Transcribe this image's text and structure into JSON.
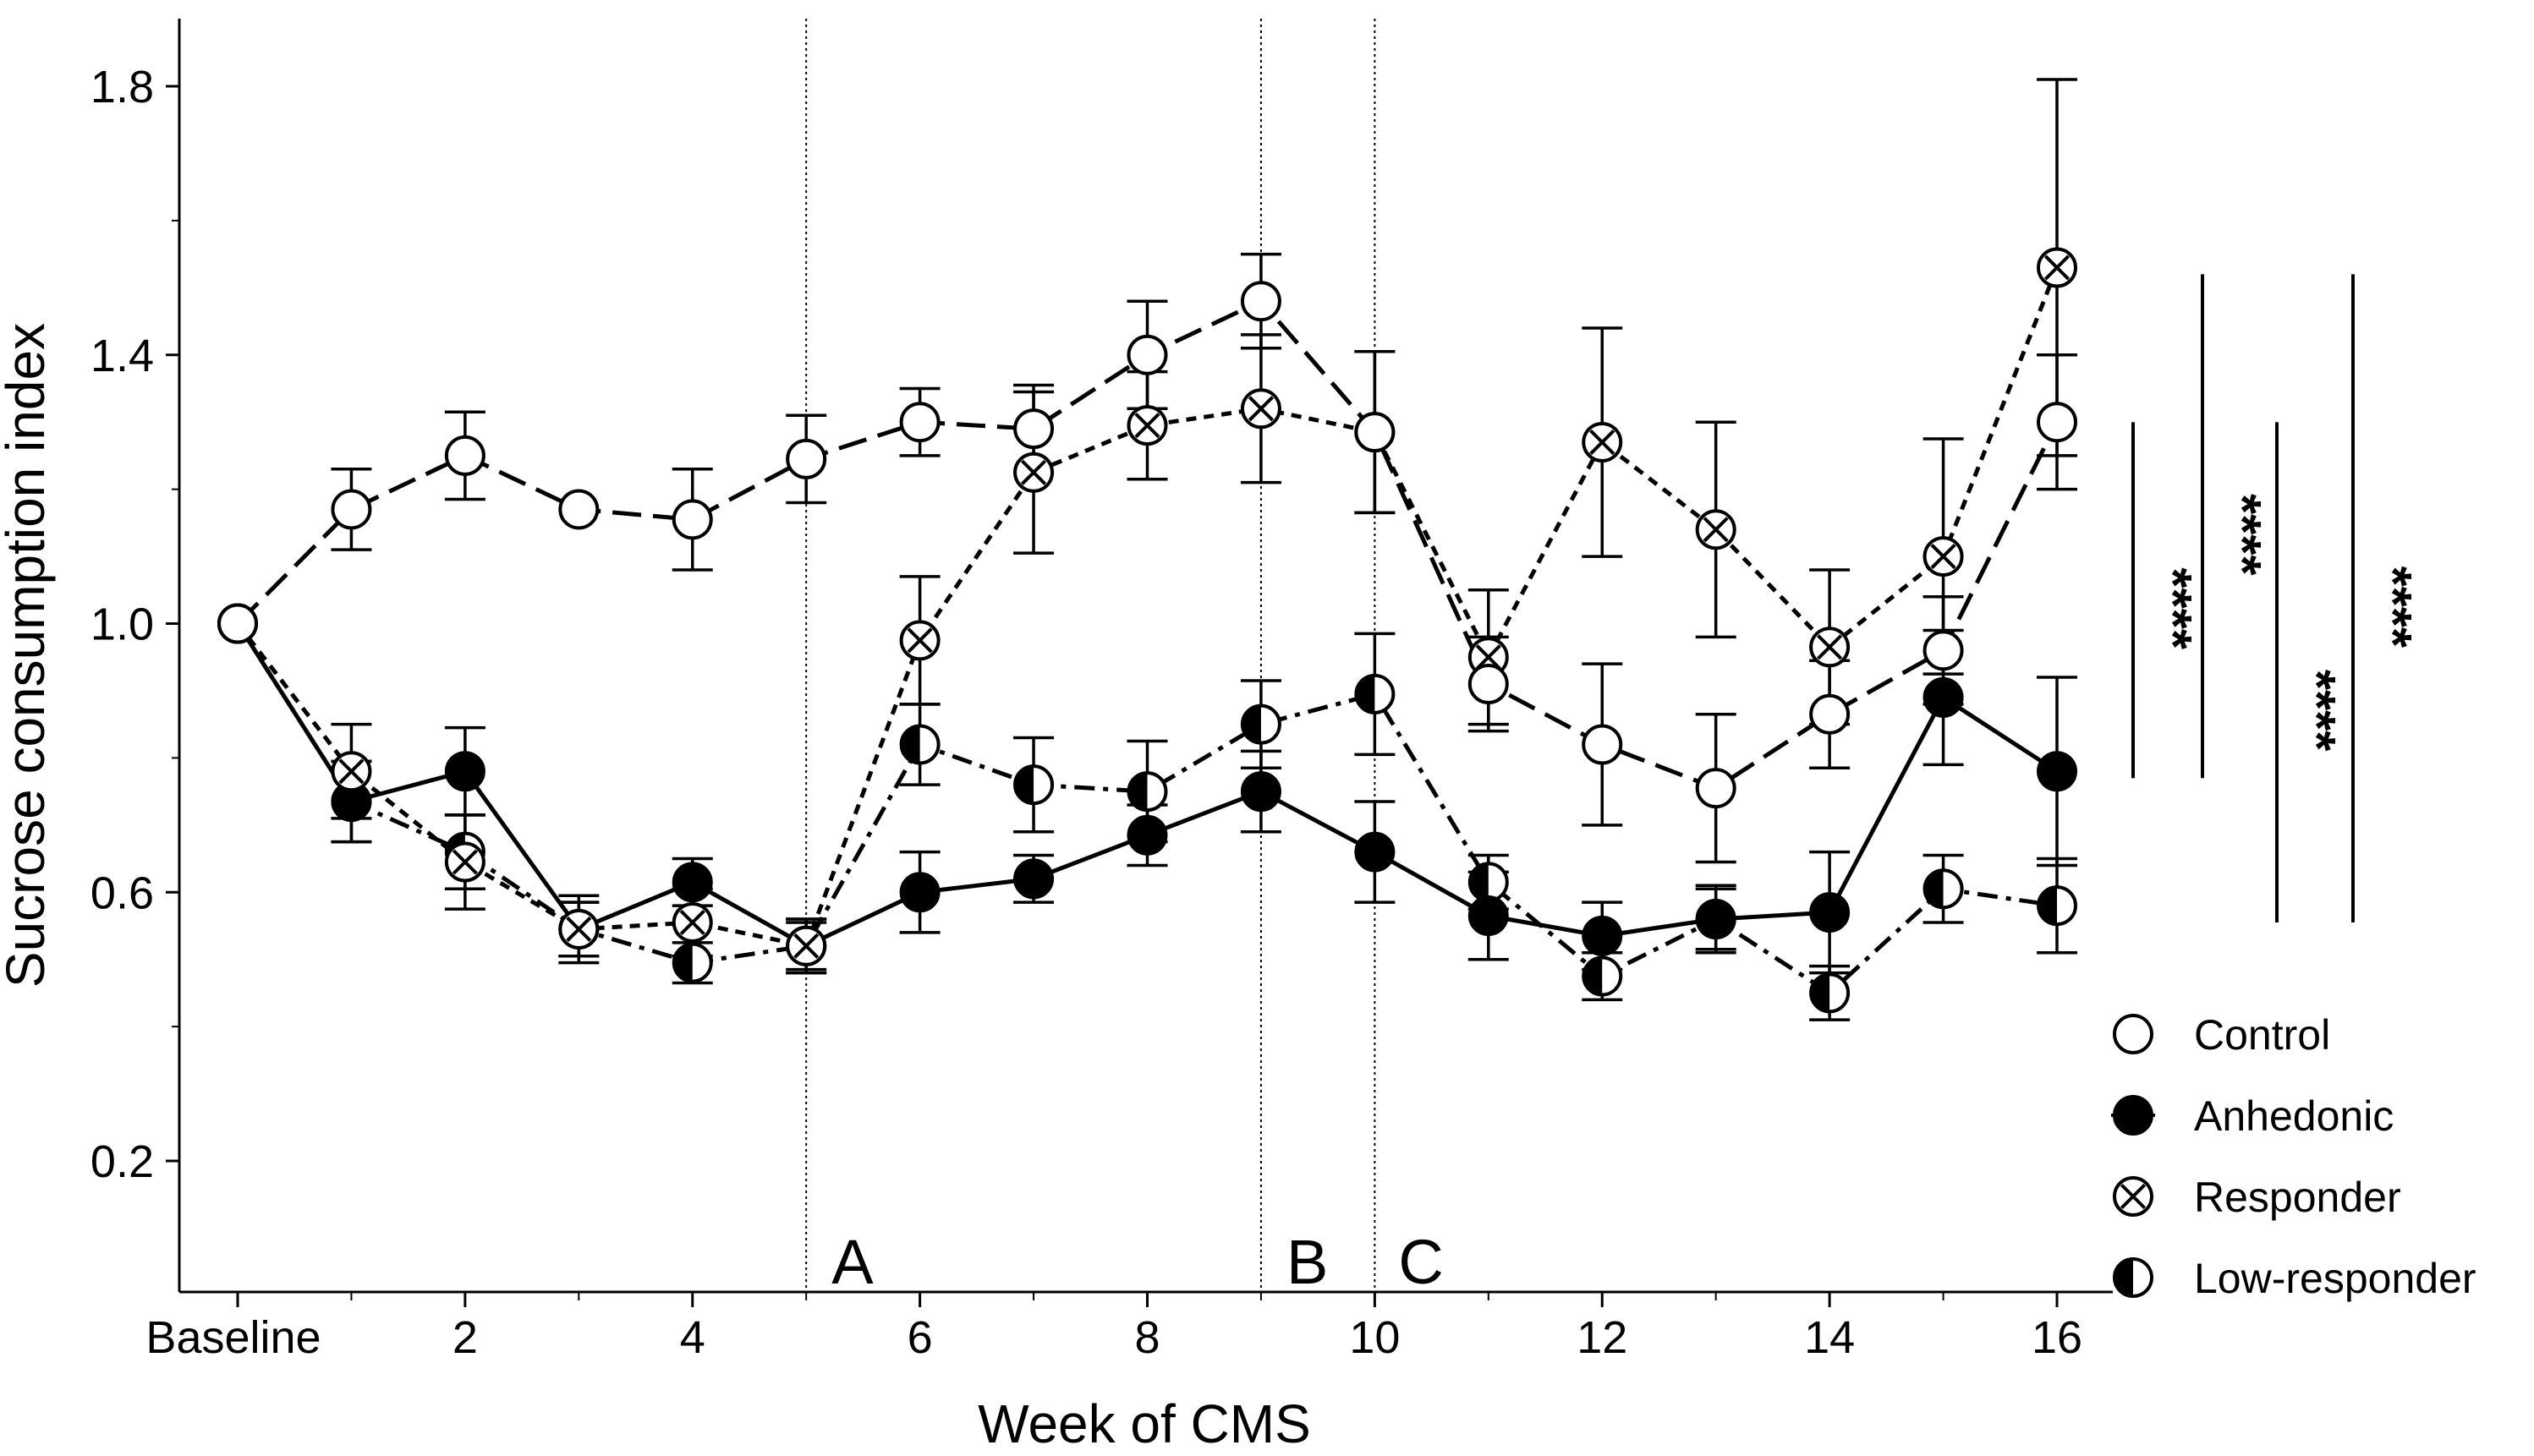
{
  "chart_data": {
    "type": "line",
    "xlabel": "Week of CMS",
    "ylabel": "Sucrose consumption index",
    "ylim": [
      0.05,
      1.9
    ],
    "xlim": [
      -0.55,
      16.5
    ],
    "yticks": [
      {
        "value": 0.2,
        "label": "0.2"
      },
      {
        "value": 0.6,
        "label": "0.6"
      },
      {
        "value": 1.0,
        "label": "1.0"
      },
      {
        "value": 1.4,
        "label": "1.4"
      },
      {
        "value": 1.8,
        "label": "1.8"
      }
    ],
    "xticks": [
      {
        "value": 0,
        "label": "Baseline"
      },
      {
        "value": 2,
        "label": "2"
      },
      {
        "value": 4,
        "label": "4"
      },
      {
        "value": 6,
        "label": "6"
      },
      {
        "value": 8,
        "label": "8"
      },
      {
        "value": 10,
        "label": "10"
      },
      {
        "value": 12,
        "label": "12"
      },
      {
        "value": 14,
        "label": "14"
      },
      {
        "value": 16,
        "label": "16"
      }
    ],
    "x": [
      0,
      1,
      2,
      3,
      4,
      5,
      6,
      7,
      8,
      9,
      10,
      11,
      12,
      13,
      14,
      15,
      16
    ],
    "series": [
      {
        "name": "Control",
        "marker": "open",
        "line": "long-dash",
        "values": [
          1.0,
          1.17,
          1.25,
          1.17,
          1.155,
          1.245,
          1.3,
          1.29,
          1.4,
          1.48,
          1.285,
          0.91,
          0.82,
          0.755,
          0.865,
          0.96,
          1.3
        ],
        "errors": [
          null,
          0.06,
          0.065,
          null,
          0.075,
          0.065,
          0.05,
          0.065,
          0.08,
          0.07,
          0.12,
          0.07,
          0.12,
          0.11,
          0.08,
          0.08,
          0.1
        ]
      },
      {
        "name": "Anhedonic",
        "marker": "filled",
        "line": "solid",
        "values": [
          1.0,
          0.735,
          0.78,
          0.545,
          0.615,
          0.52,
          0.6,
          0.62,
          0.685,
          0.75,
          0.66,
          0.565,
          0.535,
          0.56,
          0.57,
          0.89,
          0.78
        ],
        "errors": [
          null,
          0.06,
          0.065,
          0.04,
          0.035,
          0.04,
          0.06,
          0.035,
          0.045,
          0.06,
          0.075,
          0.065,
          0.05,
          0.045,
          0.09,
          0.1,
          0.14
        ]
      },
      {
        "name": "Responder",
        "marker": "cross",
        "line": "short-dash",
        "values": [
          1.0,
          0.78,
          0.645,
          0.545,
          0.555,
          0.52,
          0.975,
          1.225,
          1.295,
          1.32,
          1.285,
          0.95,
          1.27,
          1.14,
          0.965,
          1.1,
          1.53
        ],
        "errors": [
          null,
          0.07,
          0.07,
          0.05,
          0.05,
          0.04,
          0.095,
          0.12,
          0.08,
          0.11,
          0.12,
          0.1,
          0.17,
          0.16,
          0.115,
          0.175,
          0.28
        ]
      },
      {
        "name": "Low-responder",
        "marker": "half",
        "line": "dash-dot",
        "values": [
          1.0,
          0.735,
          0.66,
          0.545,
          0.495,
          0.52,
          0.82,
          0.76,
          0.75,
          0.85,
          0.895,
          0.615,
          0.475,
          0.56,
          0.45,
          0.605,
          0.58
        ],
        "errors": [
          null,
          0.06,
          0.055,
          0.04,
          0.03,
          0.035,
          0.06,
          0.07,
          0.075,
          0.065,
          0.09,
          0.04,
          0.035,
          0.05,
          0.04,
          0.05,
          0.07
        ]
      }
    ],
    "period_markers": [
      {
        "x": 5,
        "label": "A"
      },
      {
        "x": 9,
        "label": "B"
      },
      {
        "x": 10,
        "label": "C"
      }
    ],
    "significance": [
      {
        "label": "****",
        "y_range": [
          0.77,
          1.3
        ]
      },
      {
        "label": "****",
        "y_range": [
          0.77,
          1.52
        ]
      },
      {
        "label": "****",
        "y_range": [
          0.555,
          1.3
        ]
      },
      {
        "label": "****",
        "y_range": [
          0.555,
          1.52
        ]
      }
    ],
    "legend": {
      "position": "bottom-right",
      "entries": [
        {
          "marker": "open",
          "label": "Control"
        },
        {
          "marker": "filled",
          "label": "Anhedonic"
        },
        {
          "marker": "cross",
          "label": "Responder"
        },
        {
          "marker": "half",
          "label": "Low-responder"
        }
      ]
    }
  }
}
